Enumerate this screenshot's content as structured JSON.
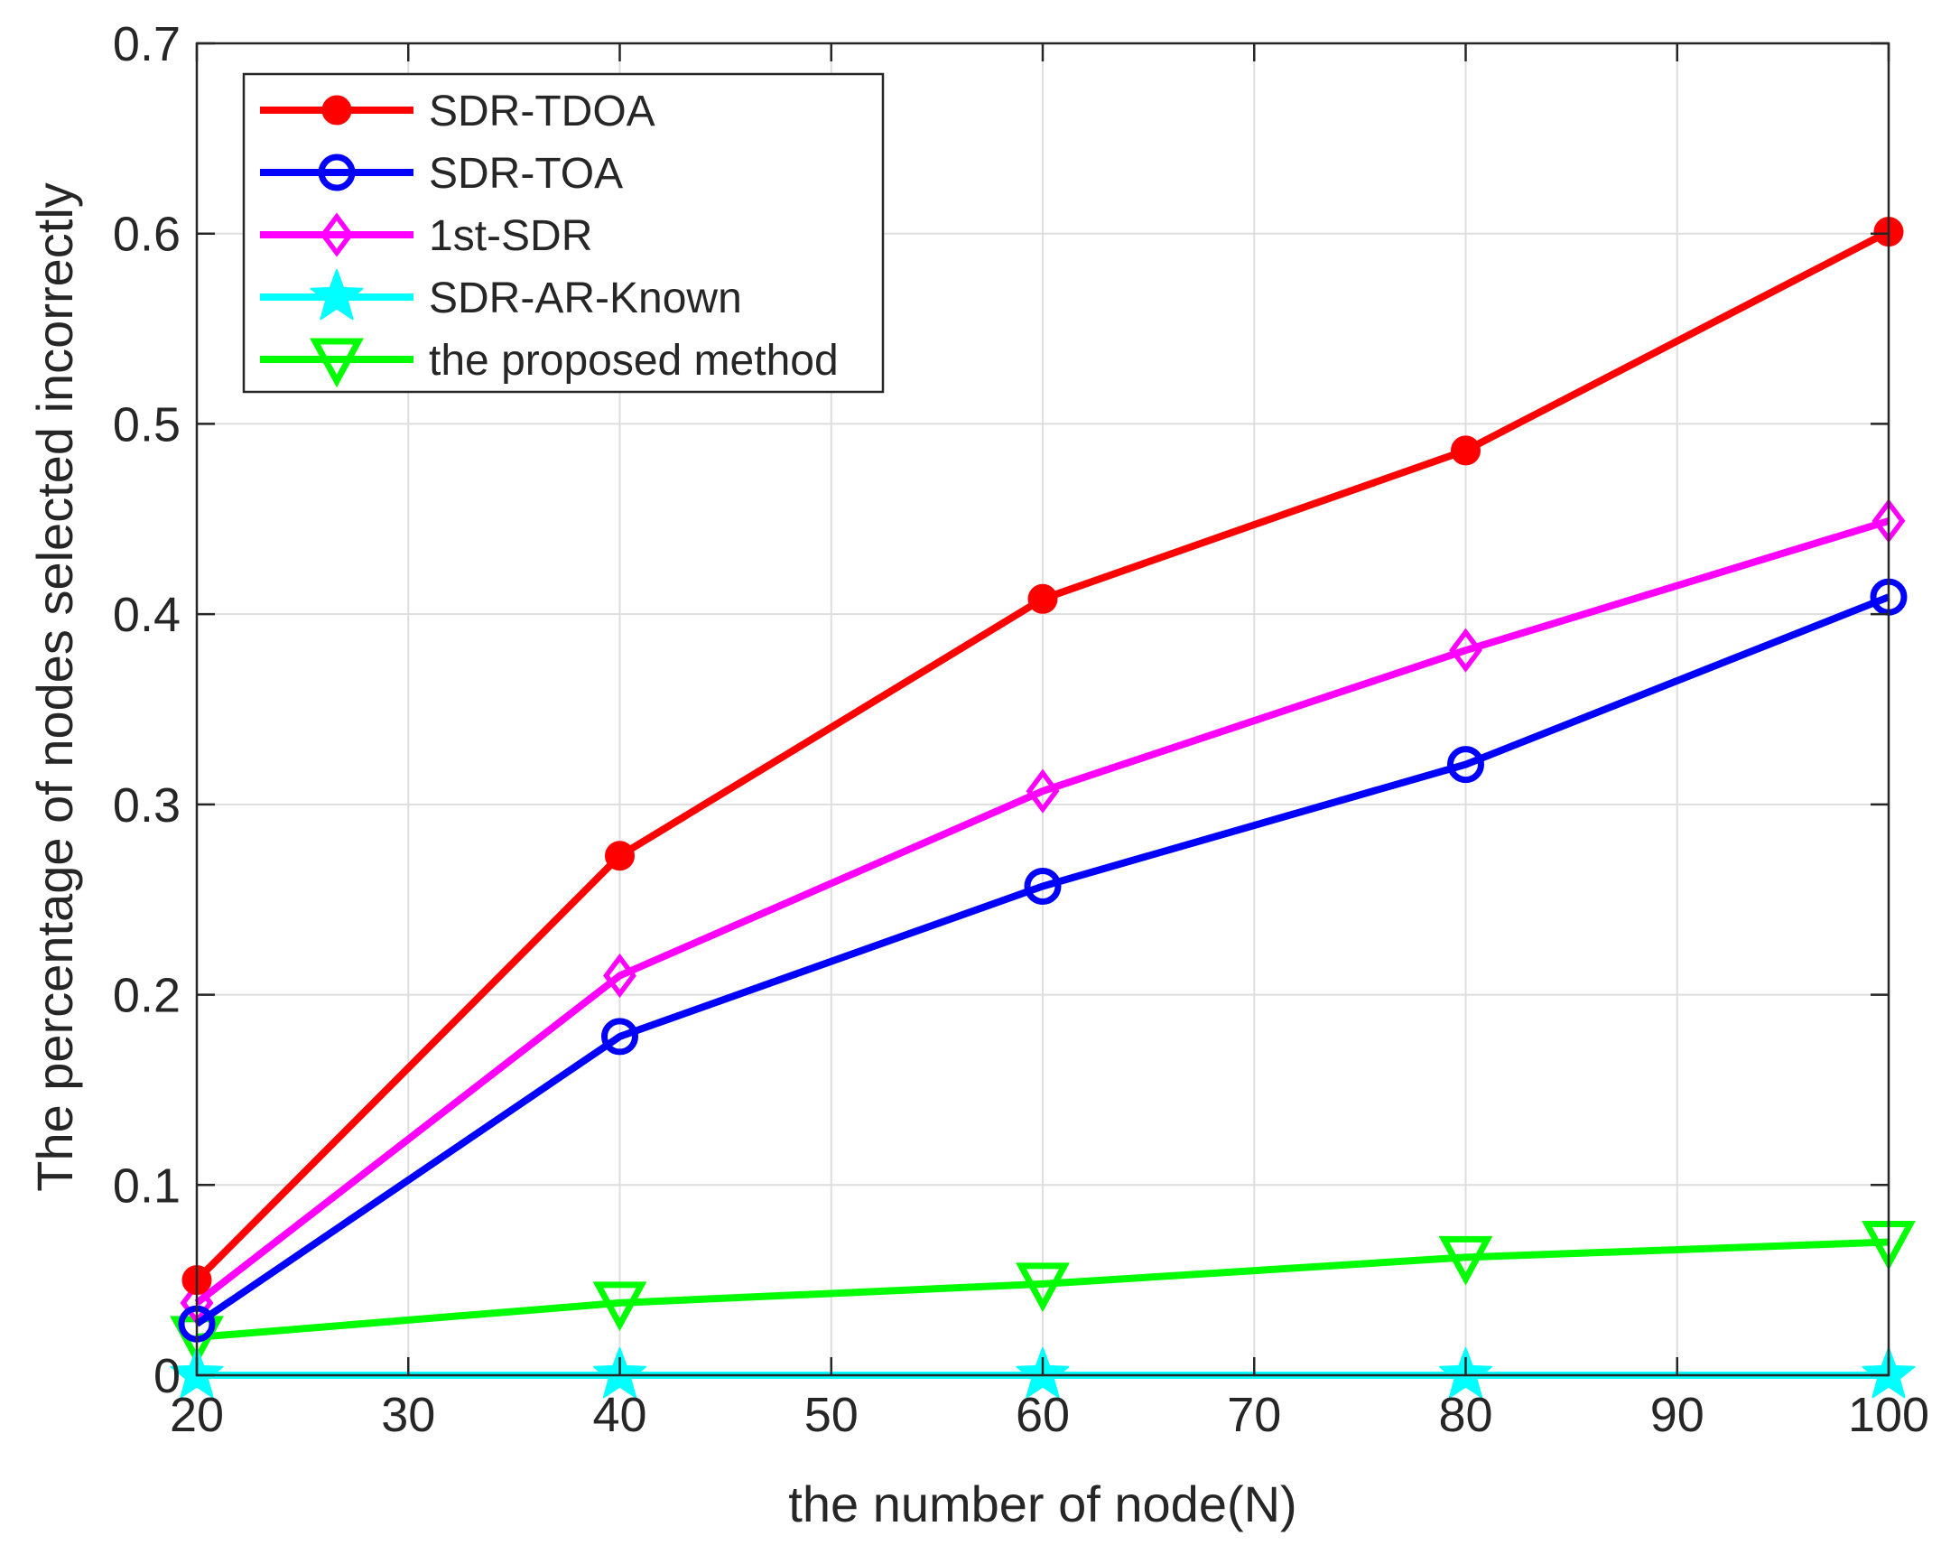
{
  "chart_data": {
    "type": "line",
    "title": "",
    "xlabel": "the number of node(N)",
    "ylabel": "The percentage of nodes selected incorrectly",
    "xlim": [
      20,
      100
    ],
    "ylim": [
      0,
      0.7
    ],
    "x_ticks": [
      20,
      30,
      40,
      50,
      60,
      70,
      80,
      90,
      100
    ],
    "y_ticks": [
      0,
      0.1,
      0.2,
      0.3,
      0.4,
      0.5,
      0.6,
      0.7
    ],
    "x_tick_labels": [
      "20",
      "30",
      "40",
      "50",
      "60",
      "70",
      "80",
      "90",
      "100"
    ],
    "y_tick_labels": [
      "0",
      "0.1",
      "0.2",
      "0.3",
      "0.4",
      "0.5",
      "0.6",
      "0.7"
    ],
    "grid": true,
    "legend_position": "top-left",
    "x": [
      20,
      40,
      60,
      80,
      100
    ],
    "series": [
      {
        "name": "SDR-TDOA",
        "color": "#ff0000",
        "marker": "filled-circle",
        "values": [
          0.05,
          0.273,
          0.408,
          0.486,
          0.601
        ]
      },
      {
        "name": "SDR-TOA",
        "color": "#0000ff",
        "marker": "open-circle",
        "values": [
          0.027,
          0.178,
          0.257,
          0.321,
          0.409
        ]
      },
      {
        "name": "1st-SDR",
        "color": "#ff00ff",
        "marker": "open-diamond",
        "values": [
          0.038,
          0.21,
          0.307,
          0.381,
          0.449
        ]
      },
      {
        "name": "SDR-AR-Known",
        "color": "#00ffff",
        "marker": "star",
        "values": [
          0,
          0,
          0,
          0,
          0
        ]
      },
      {
        "name": "the proposed method",
        "color": "#00ff00",
        "marker": "down-triangle",
        "values": [
          0.02,
          0.038,
          0.048,
          0.062,
          0.07
        ]
      }
    ]
  }
}
